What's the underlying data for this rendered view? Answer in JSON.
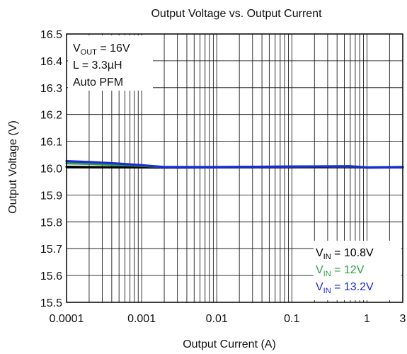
{
  "chart_data": {
    "type": "line",
    "title": "Output Voltage vs. Output Current",
    "xlabel": "Output Current (A)",
    "ylabel": "Output Voltage (V)",
    "x_scale": "log",
    "xlim": [
      0.0001,
      3
    ],
    "ylim": [
      15.5,
      16.5
    ],
    "grid": true,
    "x_ticks": [
      {
        "value": 0.0001,
        "label": "0.0001"
      },
      {
        "value": 0.001,
        "label": "0.001"
      },
      {
        "value": 0.01,
        "label": "0.01"
      },
      {
        "value": 0.1,
        "label": "0.1"
      },
      {
        "value": 1,
        "label": "1"
      },
      {
        "value": 3,
        "label": "3"
      }
    ],
    "y_ticks": [
      {
        "value": 15.5,
        "label": "15.5"
      },
      {
        "value": 15.6,
        "label": "15.6"
      },
      {
        "value": 15.7,
        "label": "15.7"
      },
      {
        "value": 15.8,
        "label": "15.8"
      },
      {
        "value": 15.9,
        "label": "15.9"
      },
      {
        "value": 16.0,
        "label": "16.0"
      },
      {
        "value": 16.1,
        "label": "16.1"
      },
      {
        "value": 16.2,
        "label": "16.2"
      },
      {
        "value": 16.3,
        "label": "16.3"
      },
      {
        "value": 16.4,
        "label": "16.4"
      },
      {
        "value": 16.5,
        "label": "16.5"
      }
    ],
    "conditions": {
      "line1": {
        "main": "V",
        "sub": "OUT",
        "rest": " = 16V"
      },
      "line2": "L = 3.3µH",
      "line3": "Auto PFM"
    },
    "legend_position": "bottom-right",
    "series": [
      {
        "legend": {
          "main": "V",
          "sub": "IN",
          "rest": " = 10.8V"
        },
        "color": "#000000",
        "x": [
          0.0001,
          0.0002,
          0.0005,
          0.001,
          0.002,
          0.01,
          0.1,
          0.6,
          1,
          3
        ],
        "y": [
          16.005,
          16.004,
          16.003,
          16.003,
          16.002,
          16.003,
          16.005,
          16.006,
          16.002,
          16.003
        ]
      },
      {
        "legend": {
          "main": "V",
          "sub": "IN",
          "rest": " = 12V"
        },
        "color": "#2e9c48",
        "x": [
          0.0001,
          0.0002,
          0.0005,
          0.001,
          0.002,
          0.01,
          0.1,
          0.6,
          1,
          3
        ],
        "y": [
          16.018,
          16.016,
          16.012,
          16.009,
          16.004,
          16.004,
          16.006,
          16.007,
          16.003,
          16.004
        ]
      },
      {
        "legend": {
          "main": "V",
          "sub": "IN",
          "rest": " = 13.2V"
        },
        "color": "#1a2bd8",
        "x": [
          0.0001,
          0.0002,
          0.0005,
          0.001,
          0.002,
          0.01,
          0.1,
          0.6,
          1,
          3
        ],
        "y": [
          16.026,
          16.023,
          16.017,
          16.011,
          16.004,
          16.004,
          16.006,
          16.007,
          16.002,
          16.004
        ]
      }
    ]
  }
}
